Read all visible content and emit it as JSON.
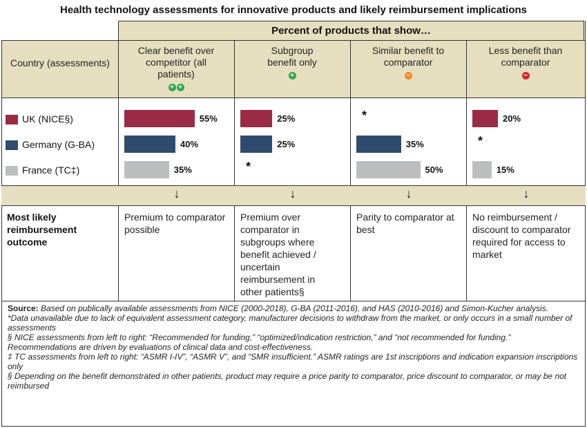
{
  "title": "Health technology assessments for innovative products and likely reimbursement implications",
  "band_header": "Percent of products that show…",
  "country_header": "Country (assessments)",
  "columns": [
    {
      "label": "Clear benefit over competitor (all patients)",
      "icon": "++",
      "icon_color": "#2fa84f"
    },
    {
      "label": "Subgroup benefit only",
      "icon": "+",
      "icon_color": "#2fa84f"
    },
    {
      "label": "Similar benefit to comparator",
      "icon": "−",
      "icon_color": "#f08a1e"
    },
    {
      "label": "Less benefit than comparator",
      "icon": "−",
      "icon_color": "#d3262e"
    }
  ],
  "chart_data": {
    "type": "bar",
    "categories": [
      "Clear benefit over competitor (all patients)",
      "Subgroup benefit only",
      "Similar benefit to comparator",
      "Less benefit than comparator"
    ],
    "series": [
      {
        "name": "UK (NICE§)",
        "color": "#9b2a45",
        "values": [
          55,
          25,
          null,
          20
        ],
        "labels": [
          "55%",
          "25%",
          "*",
          "20%"
        ]
      },
      {
        "name": "Germany (G-BA)",
        "color": "#2f4b6e",
        "values": [
          40,
          25,
          35,
          null
        ],
        "labels": [
          "40%",
          "25%",
          "35%",
          "*"
        ]
      },
      {
        "name": "France (TC‡)",
        "color": "#bdbec0",
        "values": [
          35,
          null,
          50,
          15
        ],
        "labels": [
          "35%",
          "*",
          "50%",
          "15%"
        ]
      }
    ]
  },
  "arrow_glyph": "↓",
  "outcome_label": "Most likely reimbursement outcome",
  "outcomes": [
    "Premium to comparator possible",
    "Premium over comparator in subgroups where benefit achieved / uncertain reimbursement in other patients§",
    "Parity to comparator at best",
    "No reimbursement / discount to comparator required for access to market"
  ],
  "notes": {
    "source_label": "Source:",
    "source_text": " Based on publically available assessments from NICE (2000-2018), G-BA (2011-2016), and HAS (2010-2016) and Simon-Kucher analysis.",
    "note_star": "*Data unavailable due to lack of equivalent assessment category, manufacturer decisions to withdraw from the market, or only occurs in a small number of assessments",
    "note_section": "§ NICE assessments from left to right: “Recommended for funding,” “optimized/indication restriction,” and “not recommended for funding.” Recommendations are driven by evaluations of clinical data and cost-effectiveness.",
    "note_dagger": "‡ TC assessments from left to right: “ASMR I-IV”, “ASMR V”, and “SMR insufficient.” ASMR ratings are 1st inscriptions and indication expansion inscriptions only",
    "note_section2": "§ Depending on the benefit demonstrated in other patients, product may require a price parity to comparator, price discount to comparator, or may be not reimbursed"
  }
}
